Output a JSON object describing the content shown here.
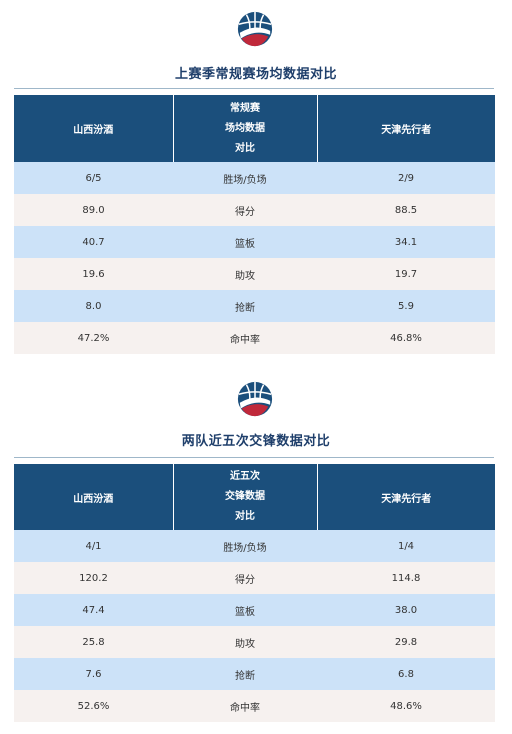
{
  "sections": [
    {
      "title": "上赛季常规赛场均数据对比",
      "header": {
        "team_left": "山西汾酒",
        "middle_lines": [
          "常规赛",
          "场均数据",
          "对比"
        ],
        "team_right": "天津先行者"
      },
      "rows": [
        {
          "left": "6/5",
          "stat": "胜场/负场",
          "right": "2/9"
        },
        {
          "left": "89.0",
          "stat": "得分",
          "right": "88.5"
        },
        {
          "left": "40.7",
          "stat": "篮板",
          "right": "34.1"
        },
        {
          "left": "19.6",
          "stat": "助攻",
          "right": "19.7"
        },
        {
          "left": "8.0",
          "stat": "抢断",
          "right": "5.9"
        },
        {
          "left": "47.2%",
          "stat": "命中率",
          "right": "46.8%"
        }
      ]
    },
    {
      "title": "两队近五次交锋数据对比",
      "header": {
        "team_left": "山西汾酒",
        "middle_lines": [
          "近五次",
          "交锋数据",
          "对比"
        ],
        "team_right": "天津先行者"
      },
      "rows": [
        {
          "left": "4/1",
          "stat": "胜场/负场",
          "right": "1/4"
        },
        {
          "left": "120.2",
          "stat": "得分",
          "right": "114.8"
        },
        {
          "left": "47.4",
          "stat": "篮板",
          "right": "38.0"
        },
        {
          "left": "25.8",
          "stat": "助攻",
          "right": "29.8"
        },
        {
          "left": "7.6",
          "stat": "抢断",
          "right": "6.8"
        },
        {
          "left": "52.6%",
          "stat": "命中率",
          "right": "48.6%"
        }
      ]
    }
  ],
  "colors": {
    "header_bg": "#1b4f7c",
    "row_blue": "#cce2f8",
    "row_light": "#f6f1ef",
    "title": "#1f3f6b",
    "logo_navy": "#1b4f7c",
    "logo_red": "#c0283a"
  },
  "icons": {
    "logo": "basketball-logo-icon"
  }
}
